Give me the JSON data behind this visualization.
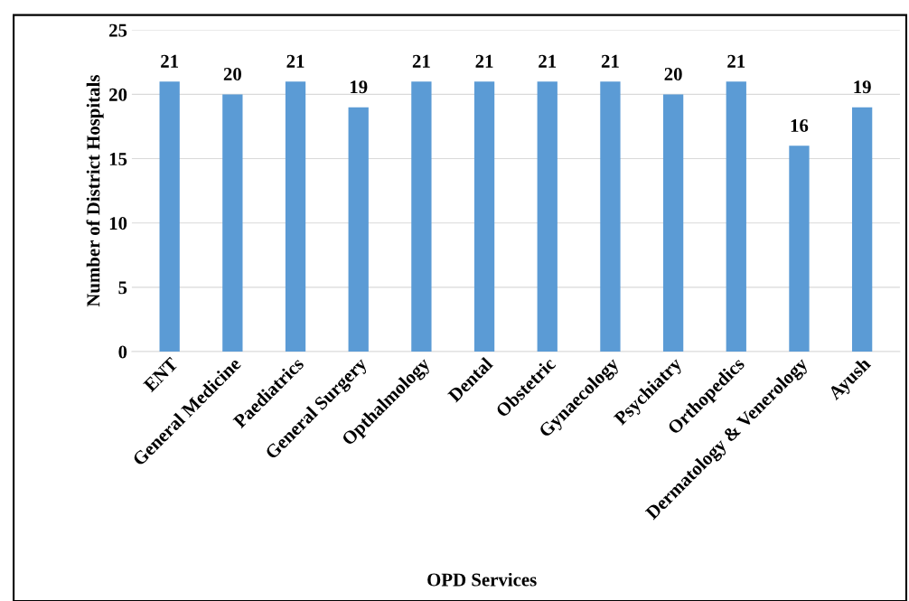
{
  "chart_data": {
    "type": "bar",
    "xlabel": "OPD Services",
    "ylabel": "Number of District Hospitals",
    "categories": [
      "ENT",
      "General Medicine",
      "Paediatrics",
      "General Surgery",
      "Opthalmology",
      "Dental",
      "Obstetric",
      "Gynaecology",
      "Psychiatry",
      "Orthopedics",
      "Dermatology & Venerology",
      "Ayush"
    ],
    "values": [
      21,
      20,
      21,
      19,
      21,
      21,
      21,
      21,
      20,
      21,
      16,
      19
    ],
    "color": "#5b9bd5",
    "ylim": [
      0,
      25
    ],
    "yticks": [
      0,
      5,
      10,
      15,
      20,
      25
    ],
    "grid": "y",
    "data_labels": true
  }
}
